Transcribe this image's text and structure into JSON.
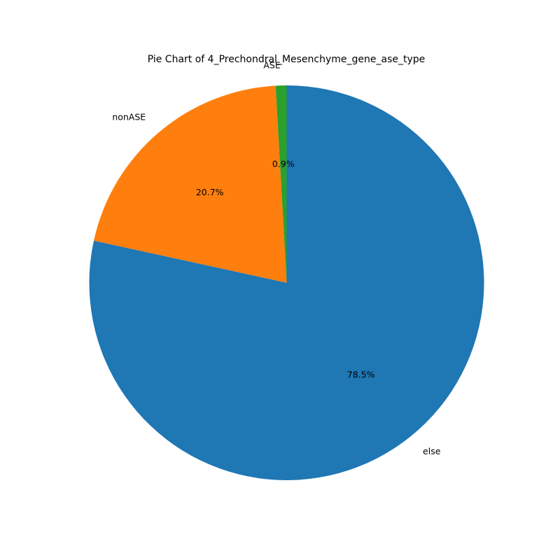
{
  "chart_data": {
    "type": "pie",
    "title": "Pie Chart of 4_Prechondral_Mesenchyme_gene_ase_type",
    "start_angle_deg": 90,
    "direction": "counterclockwise",
    "slices": [
      {
        "label": "ASE",
        "value": 0.9,
        "pct_label": "0.9%",
        "color": "#2ca02c"
      },
      {
        "label": "nonASE",
        "value": 20.7,
        "pct_label": "20.7%",
        "color": "#ff7f0e"
      },
      {
        "label": "else",
        "value": 78.5,
        "pct_label": "78.5%",
        "color": "#1f77b4"
      }
    ]
  }
}
